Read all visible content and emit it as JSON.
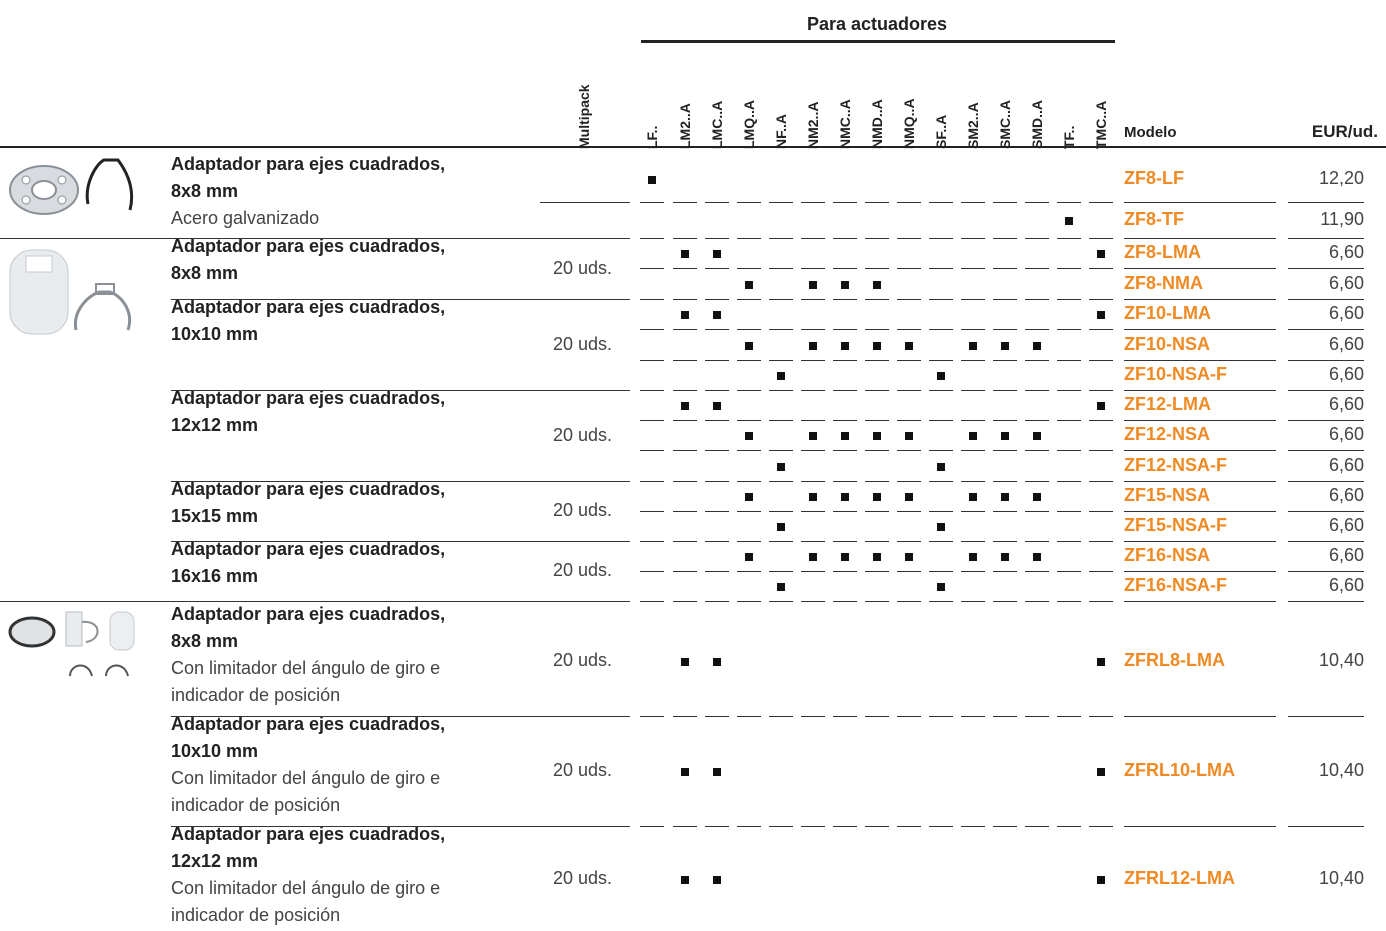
{
  "header": {
    "group_title": "Para actuadores",
    "multipack": "Multipack",
    "modelo": "Modelo",
    "eur": "EUR/ud.",
    "actuators": [
      "LF..",
      "LM2..A",
      "LMC..A",
      "LMQ..A",
      "NF..A",
      "NM2..A",
      "NMC..A",
      "NMD..A",
      "NMQ..A",
      "SF..A",
      "SM2..A",
      "SMC..A",
      "SMD..A",
      "TF..",
      "TMC..A"
    ]
  },
  "groups": [
    {
      "title": "Adaptador para ejes cuadrados,",
      "size": "8x8 mm",
      "sub1": "Acero galvanizado",
      "sub2": "",
      "multipack": ""
    },
    {
      "title": "Adaptador para ejes cuadrados,",
      "size": "8x8 mm",
      "sub1": "",
      "sub2": "",
      "multipack": "20 uds."
    },
    {
      "title": "Adaptador para ejes cuadrados,",
      "size": "10x10 mm",
      "sub1": "",
      "sub2": "",
      "multipack": "20 uds."
    },
    {
      "title": "Adaptador para ejes cuadrados,",
      "size": "12x12 mm",
      "sub1": "",
      "sub2": "",
      "multipack": "20 uds."
    },
    {
      "title": "Adaptador para ejes cuadrados,",
      "size": "15x15 mm",
      "sub1": "",
      "sub2": "",
      "multipack": "20 uds."
    },
    {
      "title": "Adaptador para ejes cuadrados,",
      "size": "16x16 mm",
      "sub1": "",
      "sub2": "",
      "multipack": "20 uds."
    },
    {
      "title": "Adaptador para ejes cuadrados,",
      "size": "8x8 mm",
      "sub1": "Con limitador del ángulo de giro e",
      "sub2": "indicador de posición",
      "multipack": "20 uds."
    },
    {
      "title": "Adaptador para ejes cuadrados,",
      "size": "10x10 mm",
      "sub1": "Con limitador del ángulo de giro e",
      "sub2": "indicador de posición",
      "multipack": "20 uds."
    },
    {
      "title": "Adaptador para ejes cuadrados,",
      "size": "12x12 mm",
      "sub1": "Con limitador del ángulo de giro e",
      "sub2": "indicador de posición",
      "multipack": "20 uds."
    }
  ],
  "rows": [
    {
      "model": "ZF8-LF",
      "price": "12,20",
      "marks": [
        "LF.."
      ]
    },
    {
      "model": "ZF8-TF",
      "price": "11,90",
      "marks": [
        "TF.."
      ]
    },
    {
      "model": "ZF8-LMA",
      "price": "6,60",
      "marks": [
        "LM2..A",
        "LMC..A",
        "TMC..A"
      ]
    },
    {
      "model": "ZF8-NMA",
      "price": "6,60",
      "marks": [
        "LMQ..A",
        "NM2..A",
        "NMC..A",
        "NMD..A"
      ]
    },
    {
      "model": "ZF10-LMA",
      "price": "6,60",
      "marks": [
        "LM2..A",
        "LMC..A",
        "TMC..A"
      ]
    },
    {
      "model": "ZF10-NSA",
      "price": "6,60",
      "marks": [
        "LMQ..A",
        "NM2..A",
        "NMC..A",
        "NMD..A",
        "NMQ..A",
        "SM2..A",
        "SMC..A",
        "SMD..A"
      ]
    },
    {
      "model": "ZF10-NSA-F",
      "price": "6,60",
      "marks": [
        "NF..A",
        "SF..A"
      ]
    },
    {
      "model": "ZF12-LMA",
      "price": "6,60",
      "marks": [
        "LM2..A",
        "LMC..A",
        "TMC..A"
      ]
    },
    {
      "model": "ZF12-NSA",
      "price": "6,60",
      "marks": [
        "LMQ..A",
        "NM2..A",
        "NMC..A",
        "NMD..A",
        "NMQ..A",
        "SM2..A",
        "SMC..A",
        "SMD..A"
      ]
    },
    {
      "model": "ZF12-NSA-F",
      "price": "6,60",
      "marks": [
        "NF..A",
        "SF..A"
      ]
    },
    {
      "model": "ZF15-NSA",
      "price": "6,60",
      "marks": [
        "LMQ..A",
        "NM2..A",
        "NMC..A",
        "NMD..A",
        "NMQ..A",
        "SM2..A",
        "SMC..A",
        "SMD..A"
      ]
    },
    {
      "model": "ZF15-NSA-F",
      "price": "6,60",
      "marks": [
        "NF..A",
        "SF..A"
      ]
    },
    {
      "model": "ZF16-NSA",
      "price": "6,60",
      "marks": [
        "LMQ..A",
        "NM2..A",
        "NMC..A",
        "NMD..A",
        "NMQ..A",
        "SM2..A",
        "SMC..A",
        "SMD..A"
      ]
    },
    {
      "model": "ZF16-NSA-F",
      "price": "6,60",
      "marks": [
        "NF..A",
        "SF..A"
      ]
    },
    {
      "model": "ZFRL8-LMA",
      "price": "10,40",
      "marks": [
        "LM2..A",
        "LMC..A",
        "TMC..A"
      ]
    },
    {
      "model": "ZFRL10-LMA",
      "price": "10,40",
      "marks": [
        "LM2..A",
        "LMC..A",
        "TMC..A"
      ]
    },
    {
      "model": "ZFRL12-LMA",
      "price": "10,40",
      "marks": [
        "LM2..A",
        "LMC..A",
        "TMC..A"
      ]
    }
  ]
}
